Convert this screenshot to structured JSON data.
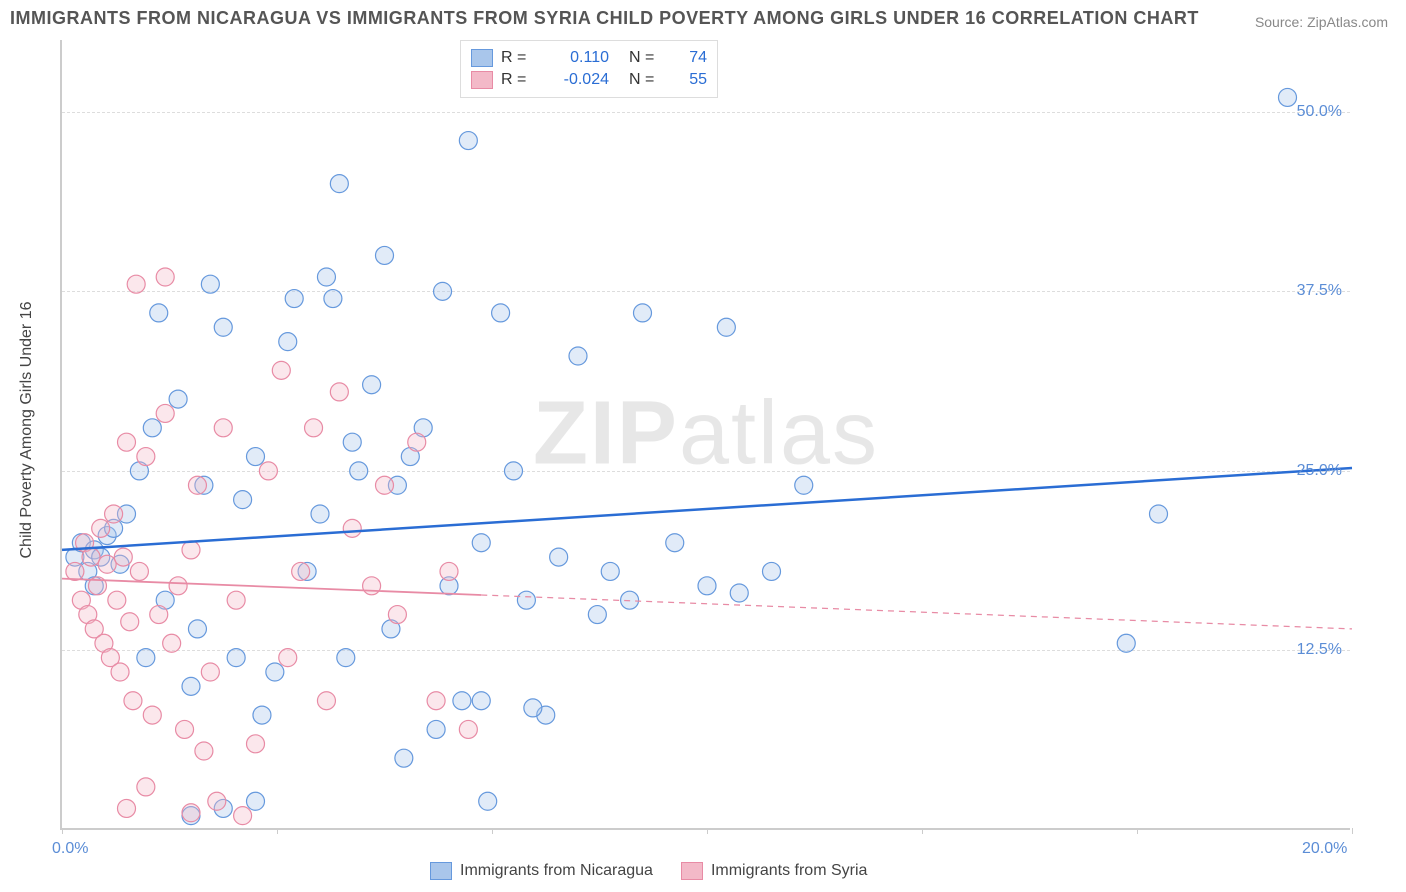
{
  "title": "IMMIGRANTS FROM NICARAGUA VS IMMIGRANTS FROM SYRIA CHILD POVERTY AMONG GIRLS UNDER 16 CORRELATION CHART",
  "source": "Source: ZipAtlas.com",
  "watermark_a": "ZIP",
  "watermark_b": "atlas",
  "y_axis_title": "Child Poverty Among Girls Under 16",
  "chart": {
    "type": "scatter",
    "background_color": "#ffffff",
    "grid_color": "#dddddd",
    "axis_color": "#cccccc",
    "xlim": [
      0,
      20
    ],
    "ylim": [
      0,
      55
    ],
    "xticks": [
      0,
      3.33,
      6.67,
      10,
      13.33,
      16.67,
      20
    ],
    "xtick_labels": [
      "0.0%",
      "",
      "",
      "",
      "",
      "",
      "20.0%"
    ],
    "yticks": [
      12.5,
      25,
      37.5,
      50
    ],
    "ytick_labels": [
      "12.5%",
      "25.0%",
      "37.5%",
      "50.0%"
    ],
    "marker_radius": 9,
    "title_fontsize": 18,
    "label_fontsize": 16,
    "tick_label_color": "#5b8dd6",
    "series": [
      {
        "name": "Immigrants from Nicaragua",
        "color_fill": "#a9c6eb",
        "color_stroke": "#6699dd",
        "r": "0.110",
        "n": "74",
        "trend": {
          "y_at_x0": 19.5,
          "y_at_xmax": 25.2,
          "x_solid_end": 20,
          "line_color": "#2a6dd4",
          "line_width": 2.5
        },
        "points": [
          [
            0.2,
            19
          ],
          [
            0.3,
            20
          ],
          [
            0.4,
            18
          ],
          [
            0.5,
            19.5
          ],
          [
            0.5,
            17
          ],
          [
            0.6,
            19
          ],
          [
            0.7,
            20.5
          ],
          [
            0.8,
            21
          ],
          [
            0.9,
            18.5
          ],
          [
            1.0,
            22
          ],
          [
            1.2,
            25
          ],
          [
            1.3,
            12
          ],
          [
            1.4,
            28
          ],
          [
            1.5,
            36
          ],
          [
            1.6,
            16
          ],
          [
            1.8,
            30
          ],
          [
            2.0,
            10
          ],
          [
            2.1,
            14
          ],
          [
            2.2,
            24
          ],
          [
            2.3,
            38
          ],
          [
            2.5,
            35
          ],
          [
            2.7,
            12
          ],
          [
            2.8,
            23
          ],
          [
            3.0,
            26
          ],
          [
            3.1,
            8
          ],
          [
            3.3,
            11
          ],
          [
            3.5,
            34
          ],
          [
            3.6,
            37
          ],
          [
            3.8,
            18
          ],
          [
            4.0,
            22
          ],
          [
            4.1,
            38.5
          ],
          [
            4.3,
            45
          ],
          [
            4.4,
            12
          ],
          [
            4.5,
            27
          ],
          [
            4.8,
            31
          ],
          [
            5.0,
            40
          ],
          [
            5.1,
            14
          ],
          [
            5.3,
            5
          ],
          [
            5.4,
            26
          ],
          [
            5.6,
            28
          ],
          [
            5.8,
            7
          ],
          [
            6.0,
            17
          ],
          [
            6.2,
            9
          ],
          [
            6.3,
            48
          ],
          [
            6.5,
            20
          ],
          [
            6.6,
            2
          ],
          [
            6.8,
            36
          ],
          [
            7.0,
            25
          ],
          [
            7.2,
            16
          ],
          [
            7.5,
            8
          ],
          [
            7.7,
            19
          ],
          [
            8.0,
            33
          ],
          [
            8.3,
            15
          ],
          [
            8.5,
            18
          ],
          [
            8.8,
            16
          ],
          [
            9.0,
            36
          ],
          [
            9.5,
            20
          ],
          [
            10.0,
            17
          ],
          [
            10.3,
            35
          ],
          [
            10.5,
            16.5
          ],
          [
            11.0,
            18
          ],
          [
            11.5,
            24
          ],
          [
            16.5,
            13
          ],
          [
            17.0,
            22
          ],
          [
            19.0,
            51
          ],
          [
            2.0,
            1
          ],
          [
            2.5,
            1.5
          ],
          [
            3.0,
            2
          ],
          [
            4.2,
            37
          ],
          [
            5.2,
            24
          ],
          [
            5.9,
            37.5
          ],
          [
            6.5,
            9
          ],
          [
            7.3,
            8.5
          ],
          [
            4.6,
            25
          ]
        ]
      },
      {
        "name": "Immigrants from Syria",
        "color_fill": "#f3b9c8",
        "color_stroke": "#e88ba5",
        "r": "-0.024",
        "n": "55",
        "trend": {
          "y_at_x0": 17.5,
          "y_at_xmax": 14.0,
          "x_solid_end": 6.5,
          "line_color": "#e88ba5",
          "line_width": 1.8
        },
        "points": [
          [
            0.2,
            18
          ],
          [
            0.3,
            16
          ],
          [
            0.35,
            20
          ],
          [
            0.4,
            15
          ],
          [
            0.45,
            19
          ],
          [
            0.5,
            14
          ],
          [
            0.55,
            17
          ],
          [
            0.6,
            21
          ],
          [
            0.65,
            13
          ],
          [
            0.7,
            18.5
          ],
          [
            0.75,
            12
          ],
          [
            0.8,
            22
          ],
          [
            0.85,
            16
          ],
          [
            0.9,
            11
          ],
          [
            0.95,
            19
          ],
          [
            1.0,
            27
          ],
          [
            1.05,
            14.5
          ],
          [
            1.1,
            9
          ],
          [
            1.15,
            38
          ],
          [
            1.2,
            18
          ],
          [
            1.3,
            26
          ],
          [
            1.4,
            8
          ],
          [
            1.5,
            15
          ],
          [
            1.6,
            29
          ],
          [
            1.7,
            13
          ],
          [
            1.8,
            17
          ],
          [
            1.9,
            7
          ],
          [
            2.0,
            19.5
          ],
          [
            2.1,
            24
          ],
          [
            2.2,
            5.5
          ],
          [
            2.3,
            11
          ],
          [
            2.5,
            28
          ],
          [
            2.7,
            16
          ],
          [
            2.8,
            1
          ],
          [
            3.0,
            6
          ],
          [
            3.2,
            25
          ],
          [
            3.4,
            32
          ],
          [
            3.5,
            12
          ],
          [
            3.7,
            18
          ],
          [
            3.9,
            28
          ],
          [
            4.1,
            9
          ],
          [
            4.3,
            30.5
          ],
          [
            4.5,
            21
          ],
          [
            4.8,
            17
          ],
          [
            5.0,
            24
          ],
          [
            5.2,
            15
          ],
          [
            5.5,
            27
          ],
          [
            5.8,
            9
          ],
          [
            6.0,
            18
          ],
          [
            6.3,
            7
          ],
          [
            1.0,
            1.5
          ],
          [
            1.3,
            3
          ],
          [
            2.0,
            1.2
          ],
          [
            2.4,
            2
          ],
          [
            1.6,
            38.5
          ]
        ]
      }
    ],
    "legend_bottom": [
      {
        "label": "Immigrants from Nicaragua",
        "fill": "#a9c6eb",
        "stroke": "#6699dd"
      },
      {
        "label": "Immigrants from Syria",
        "fill": "#f3b9c8",
        "stroke": "#e88ba5"
      }
    ]
  }
}
